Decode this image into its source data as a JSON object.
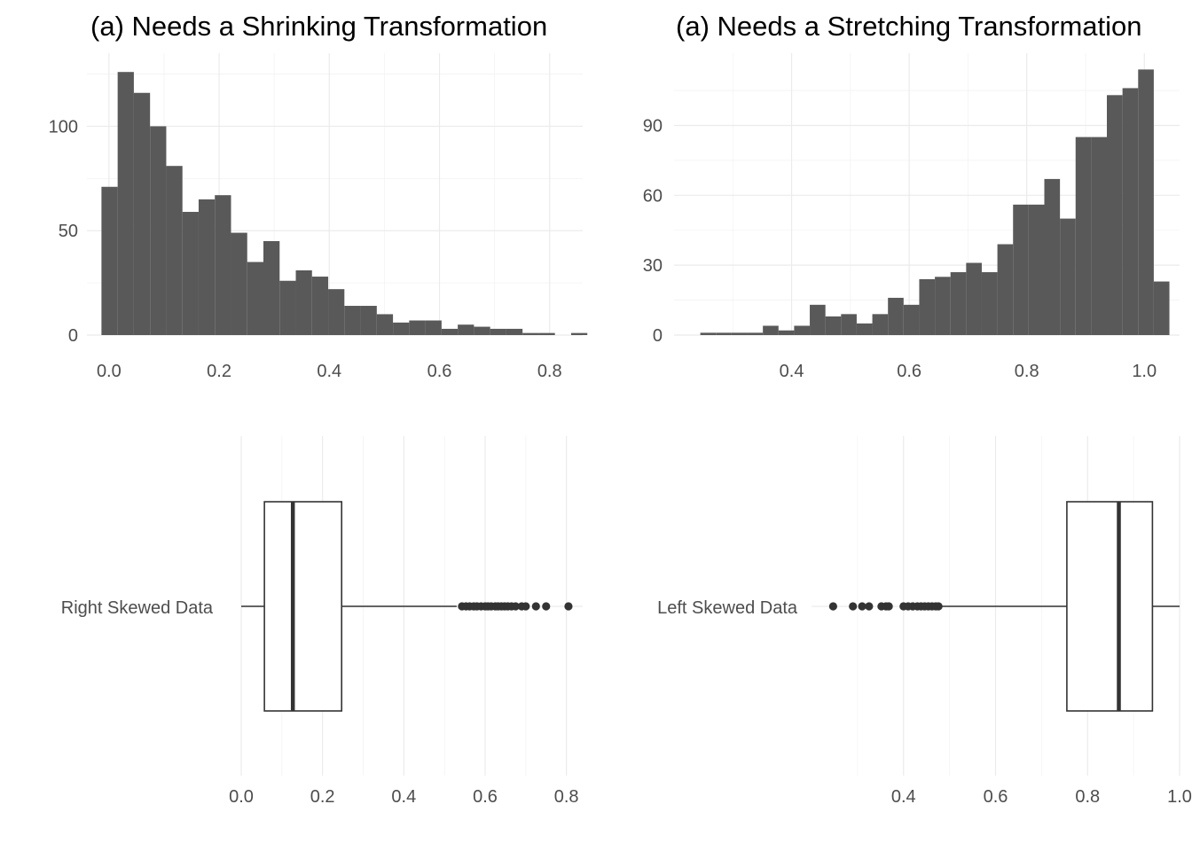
{
  "chart_data": [
    {
      "type": "histogram",
      "title": "(a) Needs a Shrinking Transformation",
      "xlabel": "",
      "ylabel": "",
      "fill_color": "#595959",
      "grid": true,
      "xlim": [
        -0.04,
        0.86
      ],
      "ylim": [
        0,
        135
      ],
      "x_ticks": [
        0.0,
        0.2,
        0.4,
        0.6,
        0.8
      ],
      "x_tick_labels": [
        "0.0",
        "0.2",
        "0.4",
        "0.6",
        "0.8"
      ],
      "y_ticks": [
        0,
        50,
        100
      ],
      "y_tick_labels": [
        "0",
        "50",
        "100"
      ],
      "bin_start": -0.0136,
      "bin_width": 0.0294,
      "counts": [
        71,
        126,
        116,
        100,
        81,
        59,
        65,
        67,
        49,
        35,
        45,
        26,
        31,
        28,
        22,
        14,
        14,
        10,
        6,
        7,
        7,
        3,
        5,
        4,
        3,
        3,
        1,
        1,
        0,
        1
      ]
    },
    {
      "type": "histogram",
      "title": "(a) Needs a Stretching Transformation",
      "xlabel": "",
      "ylabel": "",
      "fill_color": "#595959",
      "grid": true,
      "xlim": [
        0.2,
        1.06
      ],
      "ylim": [
        0,
        121
      ],
      "x_ticks": [
        0.4,
        0.6,
        0.8,
        1.0
      ],
      "x_tick_labels": [
        "0.4",
        "0.6",
        "0.8",
        "1.0"
      ],
      "y_ticks": [
        0,
        30,
        60,
        90
      ],
      "y_tick_labels": [
        "0",
        "30",
        "60",
        "90"
      ],
      "bin_start": 0.2447,
      "bin_width": 0.0266,
      "counts": [
        1,
        1,
        1,
        1,
        4,
        2,
        4,
        13,
        8,
        9,
        5,
        9,
        16,
        13,
        24,
        25,
        27,
        31,
        27,
        39,
        56,
        56,
        67,
        50,
        85,
        85,
        103,
        106,
        114,
        23
      ]
    },
    {
      "type": "boxplot",
      "category": "Right Skewed Data",
      "xlim": [
        0.0,
        0.84
      ],
      "x_ticks": [
        0.0,
        0.2,
        0.4,
        0.6,
        0.8
      ],
      "x_tick_labels": [
        "0.0",
        "0.2",
        "0.4",
        "0.6",
        "0.8"
      ],
      "stats": {
        "whisker_low": 0.0,
        "q1": 0.057,
        "median": 0.127,
        "q3": 0.247,
        "whisker_high": 0.53
      },
      "outliers": [
        0.543,
        0.553,
        0.562,
        0.572,
        0.58,
        0.59,
        0.6,
        0.607,
        0.615,
        0.625,
        0.632,
        0.64,
        0.648,
        0.656,
        0.665,
        0.675,
        0.69,
        0.7,
        0.725,
        0.75,
        0.805
      ]
    },
    {
      "type": "boxplot",
      "category": "Left Skewed Data",
      "xlim": [
        0.2,
        1.0
      ],
      "x_ticks": [
        0.4,
        0.6,
        0.8,
        1.0
      ],
      "x_tick_labels": [
        "0.4",
        "0.6",
        "0.8",
        "1.0"
      ],
      "stats": {
        "whisker_low": 0.48,
        "q1": 0.755,
        "median": 0.868,
        "q3": 0.941,
        "whisker_high": 1.0
      },
      "outliers": [
        0.247,
        0.29,
        0.31,
        0.325,
        0.352,
        0.362,
        0.368,
        0.4,
        0.41,
        0.42,
        0.43,
        0.438,
        0.446,
        0.454,
        0.462,
        0.47,
        0.476
      ]
    }
  ]
}
